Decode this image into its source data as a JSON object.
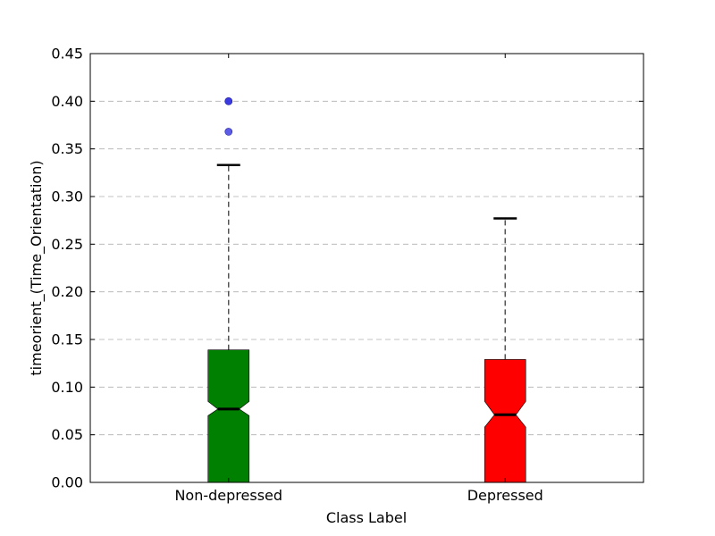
{
  "chart_data": {
    "type": "box",
    "title": "",
    "xlabel": "Class Label",
    "ylabel": "timeorient_(Time_Orientation)",
    "ylim": [
      0.0,
      0.45
    ],
    "yticks": [
      "0.00",
      "0.05",
      "0.10",
      "0.15",
      "0.20",
      "0.25",
      "0.30",
      "0.35",
      "0.40",
      "0.45"
    ],
    "grid": "horizontal-dashed",
    "categories": [
      "Non-depressed",
      "Depressed"
    ],
    "boxes": [
      {
        "category": "Non-depressed",
        "color": "#008000",
        "q1": 0.0,
        "median": 0.077,
        "q3": 0.139,
        "notch_low": 0.07,
        "notch_high": 0.085,
        "whisker_low": 0.0,
        "whisker_high": 0.333,
        "outliers": [
          0.4,
          0.4,
          0.368
        ]
      },
      {
        "category": "Depressed",
        "color": "#ff0000",
        "q1": 0.0,
        "median": 0.071,
        "q3": 0.129,
        "notch_low": 0.058,
        "notch_high": 0.085,
        "whisker_low": 0.0,
        "whisker_high": 0.277,
        "outliers": []
      }
    ],
    "outlier_color": "#3333dd"
  }
}
